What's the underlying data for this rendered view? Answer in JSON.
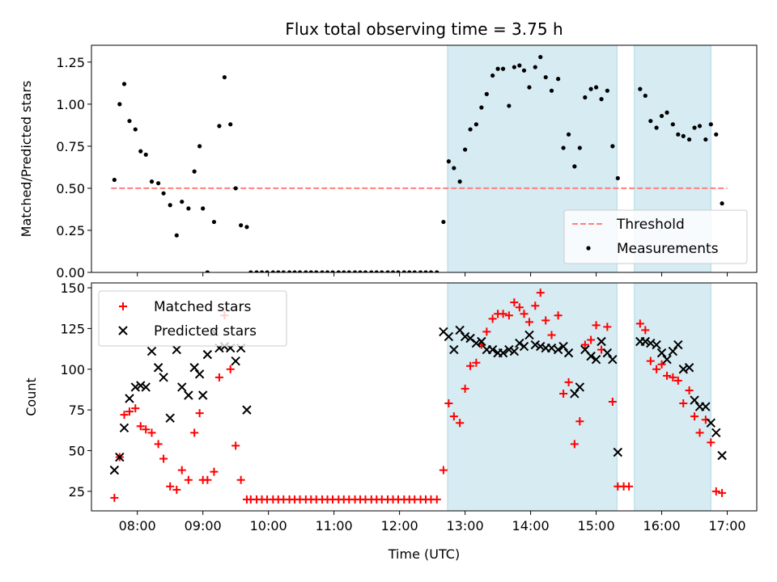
{
  "chart_data": [
    {
      "type": "scatter",
      "title": "Flux total observing time = 3.75 h",
      "xlabel": "",
      "ylabel": "Matched/Predicted stars",
      "xlim": [
        7.3,
        17.45
      ],
      "ylim": [
        0,
        1.35
      ],
      "yticks": [
        0,
        0.25,
        0.5,
        0.75,
        1.0,
        1.25
      ],
      "ytick_labels": [
        "0.00",
        "0.25",
        "0.50",
        "0.75",
        "1.00",
        "1.25"
      ],
      "shaded_spans": [
        [
          12.733,
          15.317
        ],
        [
          15.583,
          16.75
        ]
      ],
      "legend": {
        "placement": "bottom-right",
        "entries": [
          "Threshold",
          "Measurements"
        ]
      },
      "series": [
        {
          "name": "Threshold",
          "style": "dashed-line",
          "color": "#ff7f7f",
          "x": [
            7.6,
            17.0
          ],
          "y": [
            0.5,
            0.5
          ]
        },
        {
          "name": "Measurements",
          "style": "dot",
          "color": "#000000",
          "x": [
            7.65,
            7.73,
            7.8,
            7.88,
            7.97,
            8.05,
            8.13,
            8.22,
            8.32,
            8.4,
            8.5,
            8.6,
            8.68,
            8.78,
            8.87,
            8.95,
            9.0,
            9.07,
            9.17,
            9.25,
            9.33,
            9.42,
            9.5,
            9.58,
            9.67,
            9.73,
            9.82,
            9.9,
            9.98,
            10.07,
            10.15,
            10.23,
            10.32,
            10.4,
            10.48,
            10.57,
            10.65,
            10.73,
            10.82,
            10.9,
            10.98,
            11.07,
            11.15,
            11.23,
            11.32,
            11.4,
            11.48,
            11.57,
            11.65,
            11.73,
            11.82,
            11.9,
            11.98,
            12.07,
            12.15,
            12.23,
            12.32,
            12.4,
            12.48,
            12.57,
            12.67,
            12.75,
            12.83,
            12.92,
            13.0,
            13.08,
            13.17,
            13.25,
            13.33,
            13.42,
            13.5,
            13.58,
            13.67,
            13.75,
            13.83,
            13.9,
            13.98,
            14.07,
            14.15,
            14.23,
            14.32,
            14.42,
            14.5,
            14.58,
            14.67,
            14.75,
            14.83,
            14.92,
            15.0,
            15.08,
            15.17,
            15.25,
            15.33,
            15.67,
            15.75,
            15.83,
            15.92,
            16.0,
            16.08,
            16.17,
            16.25,
            16.33,
            16.42,
            16.5,
            16.58,
            16.67,
            16.75,
            16.83,
            16.92
          ],
          "y": [
            0.55,
            1.0,
            1.12,
            0.9,
            0.85,
            0.72,
            0.7,
            0.54,
            0.53,
            0.47,
            0.4,
            0.22,
            0.42,
            0.38,
            0.6,
            0.75,
            0.38,
            0.0,
            0.3,
            0.87,
            1.16,
            0.88,
            0.5,
            0.28,
            0.27,
            0.0,
            0.0,
            0.0,
            0.0,
            0.0,
            0.0,
            0.0,
            0.0,
            0.0,
            0.0,
            0.0,
            0.0,
            0.0,
            0.0,
            0.0,
            0.0,
            0.0,
            0.0,
            0.0,
            0.0,
            0.0,
            0.0,
            0.0,
            0.0,
            0.0,
            0.0,
            0.0,
            0.0,
            0.0,
            0.0,
            0.0,
            0.0,
            0.0,
            0.0,
            0.0,
            0.3,
            0.66,
            0.62,
            0.54,
            0.73,
            0.85,
            0.88,
            0.98,
            1.06,
            1.17,
            1.21,
            1.21,
            0.99,
            1.22,
            1.23,
            1.2,
            1.1,
            1.22,
            1.28,
            1.16,
            1.08,
            1.15,
            0.74,
            0.82,
            0.63,
            0.74,
            1.04,
            1.09,
            1.1,
            1.03,
            1.08,
            0.75,
            0.56,
            1.09,
            1.05,
            0.9,
            0.86,
            0.93,
            0.95,
            0.88,
            0.82,
            0.81,
            0.79,
            0.86,
            0.87,
            0.79,
            0.88,
            0.82,
            0.41
          ]
        }
      ]
    },
    {
      "type": "scatter",
      "title": "",
      "xlabel": "Time (UTC)",
      "ylabel": "Count",
      "xlim": [
        7.3,
        17.45
      ],
      "ylim": [
        13,
        153
      ],
      "yticks": [
        25,
        50,
        75,
        100,
        125,
        150
      ],
      "ytick_labels": [
        "25",
        "50",
        "75",
        "100",
        "125",
        "150"
      ],
      "xticks": [
        8,
        9,
        10,
        11,
        12,
        13,
        14,
        15,
        16,
        17
      ],
      "xtick_labels": [
        "08:00",
        "09:00",
        "10:00",
        "11:00",
        "12:00",
        "13:00",
        "14:00",
        "15:00",
        "16:00",
        "17:00"
      ],
      "shaded_spans": [
        [
          12.733,
          15.317
        ],
        [
          15.583,
          16.75
        ]
      ],
      "legend": {
        "placement": "top-left",
        "entries": [
          "Matched stars",
          "Predicted stars"
        ]
      },
      "series": [
        {
          "name": "Matched stars",
          "marker": "plus",
          "color": "#ff0000",
          "x": [
            7.65,
            7.73,
            7.8,
            7.88,
            7.97,
            8.05,
            8.13,
            8.22,
            8.32,
            8.4,
            8.5,
            8.6,
            8.68,
            8.78,
            8.87,
            8.95,
            9.0,
            9.07,
            9.17,
            9.25,
            9.33,
            9.42,
            9.5,
            9.58,
            9.67,
            9.73,
            9.82,
            9.9,
            9.98,
            10.07,
            10.15,
            10.23,
            10.32,
            10.4,
            10.48,
            10.57,
            10.65,
            10.73,
            10.82,
            10.9,
            10.98,
            11.07,
            11.15,
            11.23,
            11.32,
            11.4,
            11.48,
            11.57,
            11.65,
            11.73,
            11.82,
            11.9,
            11.98,
            12.07,
            12.15,
            12.23,
            12.32,
            12.4,
            12.48,
            12.57,
            12.67,
            12.75,
            12.83,
            12.92,
            13.0,
            13.08,
            13.17,
            13.25,
            13.33,
            13.42,
            13.5,
            13.58,
            13.67,
            13.75,
            13.83,
            13.9,
            13.98,
            14.07,
            14.15,
            14.23,
            14.32,
            14.42,
            14.5,
            14.58,
            14.67,
            14.75,
            14.83,
            14.92,
            15.0,
            15.08,
            15.17,
            15.25,
            15.33,
            15.42,
            15.5,
            15.67,
            15.75,
            15.83,
            15.92,
            16.0,
            16.08,
            16.17,
            16.25,
            16.33,
            16.42,
            16.5,
            16.58,
            16.67,
            16.75,
            16.83,
            16.92
          ],
          "y": [
            21,
            46,
            72,
            74,
            76,
            65,
            63,
            61,
            54,
            45,
            28,
            26,
            38,
            32,
            61,
            73,
            32,
            32,
            37,
            95,
            133,
            100,
            53,
            32,
            20,
            20,
            20,
            20,
            20,
            20,
            20,
            20,
            20,
            20,
            20,
            20,
            20,
            20,
            20,
            20,
            20,
            20,
            20,
            20,
            20,
            20,
            20,
            20,
            20,
            20,
            20,
            20,
            20,
            20,
            20,
            20,
            20,
            20,
            20,
            20,
            38,
            79,
            71,
            67,
            88,
            102,
            104,
            115,
            123,
            131,
            134,
            134,
            133,
            141,
            138,
            134,
            129,
            139,
            147,
            130,
            121,
            133,
            85,
            92,
            54,
            68,
            115,
            118,
            127,
            112,
            126,
            80,
            28,
            28,
            28,
            128,
            124,
            105,
            100,
            103,
            96,
            95,
            93,
            79,
            87,
            71,
            61,
            69,
            55,
            25,
            24
          ]
        },
        {
          "name": "Predicted stars",
          "marker": "x",
          "color": "#000000",
          "x": [
            7.65,
            7.73,
            7.8,
            7.88,
            7.97,
            8.05,
            8.13,
            8.22,
            8.32,
            8.4,
            8.5,
            8.6,
            8.68,
            8.78,
            8.87,
            8.95,
            9.0,
            9.07,
            9.17,
            9.25,
            9.33,
            9.42,
            9.5,
            9.58,
            9.67,
            12.67,
            12.75,
            12.83,
            12.92,
            13.0,
            13.08,
            13.17,
            13.25,
            13.33,
            13.42,
            13.5,
            13.58,
            13.67,
            13.75,
            13.83,
            13.9,
            13.98,
            14.07,
            14.15,
            14.23,
            14.32,
            14.42,
            14.5,
            14.58,
            14.67,
            14.75,
            14.83,
            14.92,
            15.0,
            15.08,
            15.17,
            15.25,
            15.33,
            15.67,
            15.75,
            15.83,
            15.92,
            16.0,
            16.08,
            16.17,
            16.25,
            16.33,
            16.42,
            16.5,
            16.58,
            16.67,
            16.75,
            16.83,
            16.92
          ],
          "y": [
            38,
            46,
            64,
            82,
            89,
            90,
            89,
            111,
            101,
            95,
            70,
            112,
            89,
            84,
            101,
            97,
            84,
            109,
            123,
            113,
            114,
            113,
            105,
            113,
            75,
            123,
            120,
            112,
            124,
            120,
            119,
            116,
            117,
            112,
            112,
            110,
            110,
            112,
            111,
            116,
            114,
            121,
            115,
            114,
            113,
            113,
            112,
            114,
            110,
            85,
            89,
            112,
            108,
            106,
            117,
            110,
            106,
            49,
            117,
            117,
            116,
            115,
            110,
            106,
            111,
            115,
            100,
            101,
            81,
            77,
            77,
            67,
            61,
            47
          ]
        }
      ]
    }
  ]
}
